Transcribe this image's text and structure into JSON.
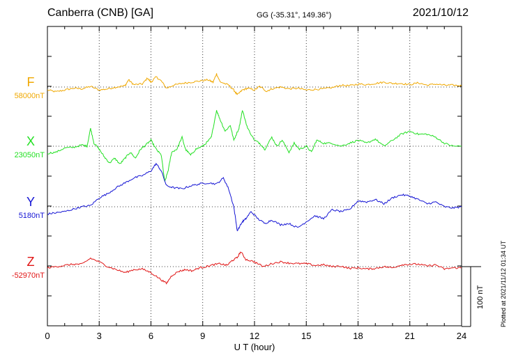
{
  "header": {
    "station": "Canberra (CNB)  [GA]",
    "coords": "GG (-35.31°, 149.36°)",
    "date": "2021/10/12"
  },
  "footer": {
    "plotted_note": "Plotted at 2021/11/12 01:34 UT"
  },
  "colors": {
    "F": "#f0a800",
    "X": "#22e022",
    "Y": "#1414d4",
    "Z": "#e01414",
    "axis": "#000000"
  },
  "chart_data": {
    "type": "line",
    "xlabel": "U T (hour)",
    "xlim": [
      0,
      24
    ],
    "x_ticks": [
      "0",
      "3",
      "6",
      "9",
      "12",
      "15",
      "18",
      "21",
      "24"
    ],
    "grid": true,
    "scale_bar": "100 nT",
    "series": [
      {
        "name": "F",
        "baseline_label": "58000nT",
        "baseline_nT": 58000,
        "points": [
          [
            0,
            -5
          ],
          [
            0.5,
            -8
          ],
          [
            1,
            -5
          ],
          [
            1.5,
            -2
          ],
          [
            2,
            -3
          ],
          [
            2.5,
            1
          ],
          [
            3,
            -5
          ],
          [
            3.5,
            -3
          ],
          [
            4,
            0
          ],
          [
            4.5,
            2
          ],
          [
            4.7,
            12
          ],
          [
            5,
            4
          ],
          [
            5.5,
            5
          ],
          [
            5.8,
            15
          ],
          [
            6,
            8
          ],
          [
            6.3,
            17
          ],
          [
            6.6,
            10
          ],
          [
            6.9,
            -2
          ],
          [
            7.3,
            3
          ],
          [
            7.8,
            6
          ],
          [
            8.3,
            8
          ],
          [
            8.8,
            10
          ],
          [
            9.3,
            12
          ],
          [
            9.6,
            8
          ],
          [
            9.8,
            22
          ],
          [
            10,
            9
          ],
          [
            10.5,
            3
          ],
          [
            10.8,
            -5
          ],
          [
            11,
            -13
          ],
          [
            11.3,
            -5
          ],
          [
            11.6,
            -2
          ],
          [
            12,
            -5
          ],
          [
            12.3,
            1
          ],
          [
            12.7,
            -7
          ],
          [
            13,
            -3
          ],
          [
            13.5,
            0
          ],
          [
            14,
            -3
          ],
          [
            14.5,
            -2
          ],
          [
            15,
            -5
          ],
          [
            15.5,
            -4
          ],
          [
            16,
            -3
          ],
          [
            16.5,
            -1
          ],
          [
            17,
            3
          ],
          [
            17.5,
            2
          ],
          [
            18,
            5
          ],
          [
            18.5,
            4
          ],
          [
            19,
            6
          ],
          [
            19.5,
            8
          ],
          [
            20,
            6
          ],
          [
            20.5,
            6
          ],
          [
            21,
            4
          ],
          [
            21.5,
            7
          ],
          [
            22,
            3
          ],
          [
            22.5,
            5
          ],
          [
            23,
            3
          ],
          [
            23.5,
            3
          ],
          [
            24,
            2
          ]
        ]
      },
      {
        "name": "X",
        "baseline_label": "23050nT",
        "baseline_nT": 23050,
        "points": [
          [
            0,
            -12
          ],
          [
            0.5,
            -10
          ],
          [
            1,
            -3
          ],
          [
            1.5,
            -2
          ],
          [
            2,
            2
          ],
          [
            2.3,
            0
          ],
          [
            2.5,
            30
          ],
          [
            2.7,
            5
          ],
          [
            3,
            -5
          ],
          [
            3.3,
            -18
          ],
          [
            3.6,
            -28
          ],
          [
            3.9,
            -20
          ],
          [
            4.2,
            -30
          ],
          [
            4.5,
            -20
          ],
          [
            4.8,
            -10
          ],
          [
            5.1,
            -20
          ],
          [
            5.4,
            -5
          ],
          [
            5.7,
            2
          ],
          [
            6,
            10
          ],
          [
            6.3,
            -5
          ],
          [
            6.6,
            -15
          ],
          [
            6.8,
            -60
          ],
          [
            7,
            -40
          ],
          [
            7.2,
            -10
          ],
          [
            7.5,
            -5
          ],
          [
            7.8,
            15
          ],
          [
            8,
            -5
          ],
          [
            8.3,
            -15
          ],
          [
            8.6,
            -5
          ],
          [
            9,
            0
          ],
          [
            9.3,
            8
          ],
          [
            9.5,
            15
          ],
          [
            9.8,
            60
          ],
          [
            10,
            45
          ],
          [
            10.3,
            25
          ],
          [
            10.6,
            35
          ],
          [
            10.8,
            10
          ],
          [
            11.1,
            30
          ],
          [
            11.3,
            60
          ],
          [
            11.6,
            30
          ],
          [
            12,
            10
          ],
          [
            12.3,
            5
          ],
          [
            12.6,
            -5
          ],
          [
            13,
            15
          ],
          [
            13.3,
            0
          ],
          [
            13.6,
            10
          ],
          [
            14,
            -10
          ],
          [
            14.3,
            5
          ],
          [
            14.6,
            -5
          ],
          [
            15,
            0
          ],
          [
            15.3,
            -10
          ],
          [
            15.6,
            10
          ],
          [
            16,
            5
          ],
          [
            16.5,
            5
          ],
          [
            17,
            0
          ],
          [
            17.5,
            5
          ],
          [
            18,
            10
          ],
          [
            18.5,
            5
          ],
          [
            19,
            12
          ],
          [
            19.5,
            0
          ],
          [
            20,
            10
          ],
          [
            20.5,
            20
          ],
          [
            21,
            25
          ],
          [
            21.5,
            20
          ],
          [
            22,
            20
          ],
          [
            22.5,
            15
          ],
          [
            23,
            5
          ],
          [
            23.5,
            0
          ],
          [
            24,
            0
          ]
        ]
      },
      {
        "name": "Y",
        "baseline_label": "5180nT",
        "baseline_nT": 5180,
        "points": [
          [
            0,
            -12
          ],
          [
            0.5,
            -10
          ],
          [
            1,
            -8
          ],
          [
            1.5,
            -4
          ],
          [
            2,
            0
          ],
          [
            2.5,
            2
          ],
          [
            3,
            15
          ],
          [
            3.5,
            22
          ],
          [
            4,
            32
          ],
          [
            4.5,
            40
          ],
          [
            5,
            48
          ],
          [
            5.5,
            52
          ],
          [
            6,
            60
          ],
          [
            6.3,
            72
          ],
          [
            6.6,
            60
          ],
          [
            6.9,
            35
          ],
          [
            7.3,
            32
          ],
          [
            7.8,
            30
          ],
          [
            8.3,
            35
          ],
          [
            8.8,
            38
          ],
          [
            9.3,
            40
          ],
          [
            9.8,
            38
          ],
          [
            10.2,
            48
          ],
          [
            10.5,
            30
          ],
          [
            10.8,
            0
          ],
          [
            11,
            -40
          ],
          [
            11.3,
            -25
          ],
          [
            11.5,
            -20
          ],
          [
            11.8,
            -8
          ],
          [
            12.2,
            -20
          ],
          [
            12.6,
            -28
          ],
          [
            13,
            -22
          ],
          [
            13.5,
            -30
          ],
          [
            14,
            -28
          ],
          [
            14.5,
            -35
          ],
          [
            15,
            -25
          ],
          [
            15.5,
            -15
          ],
          [
            16,
            -20
          ],
          [
            16.5,
            -5
          ],
          [
            17,
            -8
          ],
          [
            17.5,
            -5
          ],
          [
            18,
            10
          ],
          [
            18.5,
            8
          ],
          [
            19,
            12
          ],
          [
            19.5,
            5
          ],
          [
            20,
            15
          ],
          [
            20.5,
            20
          ],
          [
            21,
            18
          ],
          [
            21.5,
            12
          ],
          [
            22,
            5
          ],
          [
            22.5,
            8
          ],
          [
            23,
            0
          ],
          [
            23.5,
            -2
          ],
          [
            24,
            0
          ]
        ]
      },
      {
        "name": "Z",
        "baseline_label": "-52970nT",
        "baseline_nT": -52970,
        "points": [
          [
            0,
            -2
          ],
          [
            0.5,
            0
          ],
          [
            1,
            2
          ],
          [
            1.5,
            4
          ],
          [
            2,
            4
          ],
          [
            2.5,
            14
          ],
          [
            3,
            8
          ],
          [
            3.5,
            0
          ],
          [
            4,
            -5
          ],
          [
            4.5,
            -10
          ],
          [
            5,
            -5
          ],
          [
            5.5,
            -4
          ],
          [
            6,
            -10
          ],
          [
            6.5,
            -20
          ],
          [
            6.9,
            -28
          ],
          [
            7.2,
            -15
          ],
          [
            7.6,
            -8
          ],
          [
            8,
            -5
          ],
          [
            8.4,
            -7
          ],
          [
            8.8,
            -2
          ],
          [
            9.2,
            0
          ],
          [
            9.6,
            3
          ],
          [
            10,
            5
          ],
          [
            10.4,
            2
          ],
          [
            10.7,
            10
          ],
          [
            11,
            15
          ],
          [
            11.2,
            25
          ],
          [
            11.5,
            12
          ],
          [
            12,
            8
          ],
          [
            12.5,
            0
          ],
          [
            13,
            5
          ],
          [
            13.5,
            8
          ],
          [
            14,
            6
          ],
          [
            14.5,
            5
          ],
          [
            15,
            5
          ],
          [
            15.5,
            2
          ],
          [
            16,
            3
          ],
          [
            16.5,
            0
          ],
          [
            17,
            1
          ],
          [
            17.5,
            -3
          ],
          [
            18,
            -2
          ],
          [
            18.5,
            -4
          ],
          [
            19,
            -3
          ],
          [
            19.5,
            0
          ],
          [
            20,
            -2
          ],
          [
            20.5,
            3
          ],
          [
            21,
            4
          ],
          [
            21.5,
            4
          ],
          [
            22,
            1
          ],
          [
            22.5,
            3
          ],
          [
            23,
            -4
          ],
          [
            23.5,
            -2
          ],
          [
            24,
            -2
          ]
        ]
      }
    ]
  }
}
